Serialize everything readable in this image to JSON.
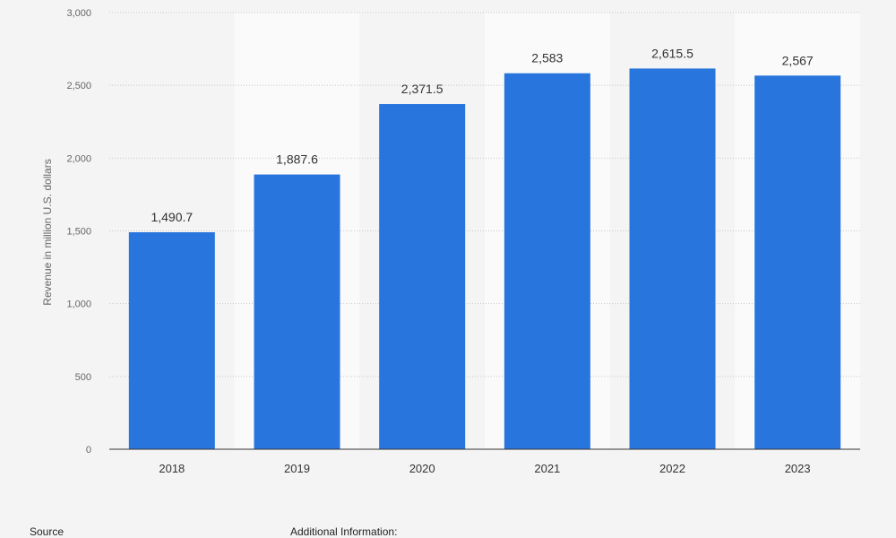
{
  "chart_data": {
    "type": "bar",
    "categories": [
      "2018",
      "2019",
      "2020",
      "2021",
      "2022",
      "2023"
    ],
    "values": [
      1490.7,
      1887.6,
      2371.5,
      2583,
      2615.5,
      2567
    ],
    "data_labels": [
      "1,490.7",
      "1,887.6",
      "2,371.5",
      "2,583",
      "2,615.5",
      "2,567"
    ],
    "ylabel": "Revenue in million U.S. dollars",
    "xlabel": "",
    "ylim": [
      0,
      3000
    ],
    "yticks": [
      0,
      500,
      1000,
      1500,
      2000,
      2500,
      3000
    ],
    "ytick_labels": [
      "0",
      "500",
      "1,000",
      "1,500",
      "2,000",
      "2,500",
      "3,000"
    ],
    "grid": true,
    "bar_color": "#2876dd"
  },
  "footer": {
    "source_label": "Source",
    "additional_info_label": "Additional Information:"
  }
}
